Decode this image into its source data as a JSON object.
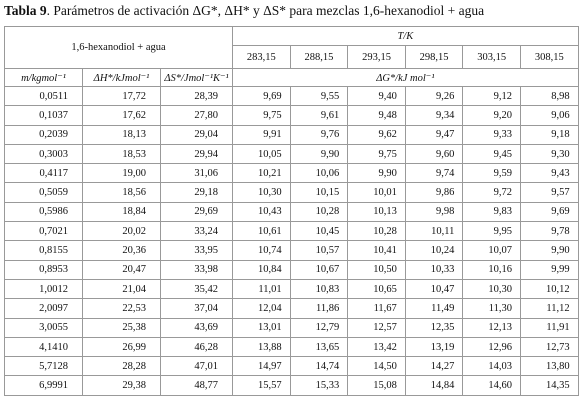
{
  "title": {
    "label": "Tabla 9",
    "text": ". Parámetros de activación ΔG*, ΔH* y ΔS* para mezclas 1,6-hexanodiol + agua"
  },
  "table": {
    "group_header": "1,6-hexanodiol + agua",
    "temperature_header": "T/K",
    "temperatures": [
      "283,15",
      "288,15",
      "293,15",
      "298,15",
      "303,15",
      "308,15"
    ],
    "columns": [
      "m/kgmol⁻¹",
      "ΔH*/kJmol⁻¹",
      "ΔS*/Jmol⁻¹K⁻¹",
      "ΔG*/kJ mol⁻¹"
    ],
    "rows": [
      [
        "0,0511",
        "17,72",
        "28,39",
        "9,69",
        "9,55",
        "9,40",
        "9,26",
        "9,12",
        "8,98"
      ],
      [
        "0,1037",
        "17,62",
        "27,80",
        "9,75",
        "9,61",
        "9,48",
        "9,34",
        "9,20",
        "9,06"
      ],
      [
        "0,2039",
        "18,13",
        "29,04",
        "9,91",
        "9,76",
        "9,62",
        "9,47",
        "9,33",
        "9,18"
      ],
      [
        "0,3003",
        "18,53",
        "29,94",
        "10,05",
        "9,90",
        "9,75",
        "9,60",
        "9,45",
        "9,30"
      ],
      [
        "0,4117",
        "19,00",
        "31,06",
        "10,21",
        "10,06",
        "9,90",
        "9,74",
        "9,59",
        "9,43"
      ],
      [
        "0,5059",
        "18,56",
        "29,18",
        "10,30",
        "10,15",
        "10,01",
        "9,86",
        "9,72",
        "9,57"
      ],
      [
        "0,5986",
        "18,84",
        "29,69",
        "10,43",
        "10,28",
        "10,13",
        "9,98",
        "9,83",
        "9,69"
      ],
      [
        "0,7021",
        "20,02",
        "33,24",
        "10,61",
        "10,45",
        "10,28",
        "10,11",
        "9,95",
        "9,78"
      ],
      [
        "0,8155",
        "20,36",
        "33,95",
        "10,74",
        "10,57",
        "10,41",
        "10,24",
        "10,07",
        "9,90"
      ],
      [
        "0,8953",
        "20,47",
        "33,98",
        "10,84",
        "10,67",
        "10,50",
        "10,33",
        "10,16",
        "9,99"
      ],
      [
        "1,0012",
        "21,04",
        "35,42",
        "11,01",
        "10,83",
        "10,65",
        "10,47",
        "10,30",
        "10,12"
      ],
      [
        "2,0097",
        "22,53",
        "37,04",
        "12,04",
        "11,86",
        "11,67",
        "11,49",
        "11,30",
        "11,12"
      ],
      [
        "3,0055",
        "25,38",
        "43,69",
        "13,01",
        "12,79",
        "12,57",
        "12,35",
        "12,13",
        "11,91"
      ],
      [
        "4,1410",
        "26,99",
        "46,28",
        "13,88",
        "13,65",
        "13,42",
        "13,19",
        "12,96",
        "12,73"
      ],
      [
        "5,7128",
        "28,28",
        "47,01",
        "14,97",
        "14,74",
        "14,50",
        "14,27",
        "14,03",
        "13,80"
      ],
      [
        "6,9991",
        "29,38",
        "48,77",
        "15,57",
        "15,33",
        "15,08",
        "14,84",
        "14,60",
        "14,35"
      ]
    ]
  }
}
